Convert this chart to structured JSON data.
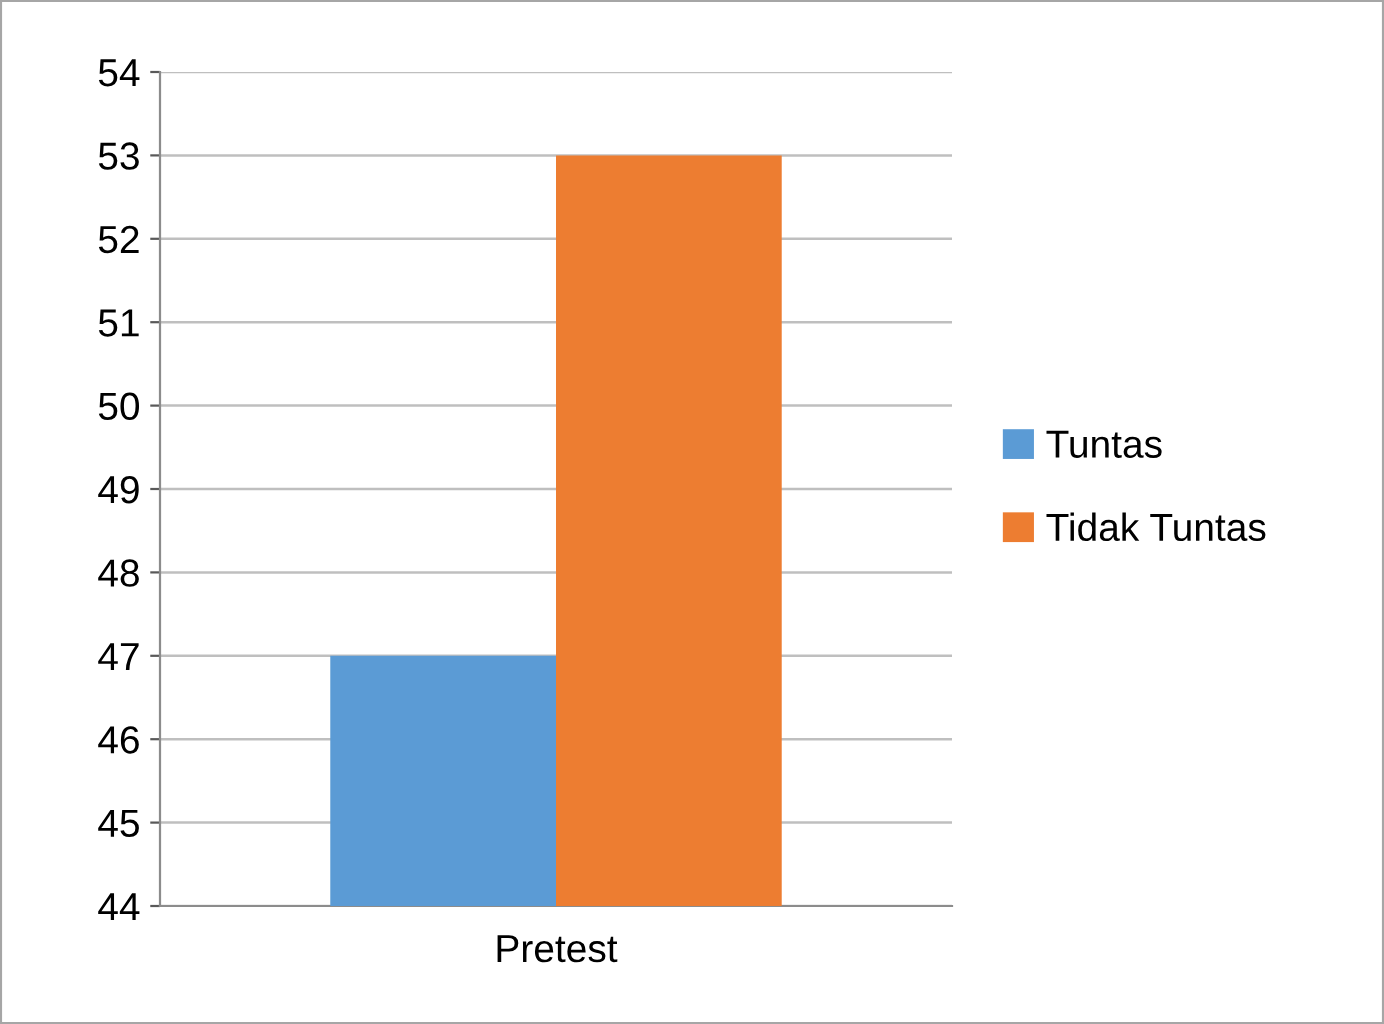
{
  "chart_data": {
    "type": "bar",
    "categories": [
      "Pretest"
    ],
    "series": [
      {
        "name": "Tuntas",
        "color": "#5b9bd5",
        "values": [
          47
        ]
      },
      {
        "name": "Tidak Tuntas",
        "color": "#ed7d31",
        "values": [
          53
        ]
      }
    ],
    "ylim": [
      44,
      54
    ],
    "yticks": [
      44,
      45,
      46,
      47,
      48,
      49,
      50,
      51,
      52,
      53,
      54
    ],
    "grid": "y",
    "legend": "right"
  }
}
